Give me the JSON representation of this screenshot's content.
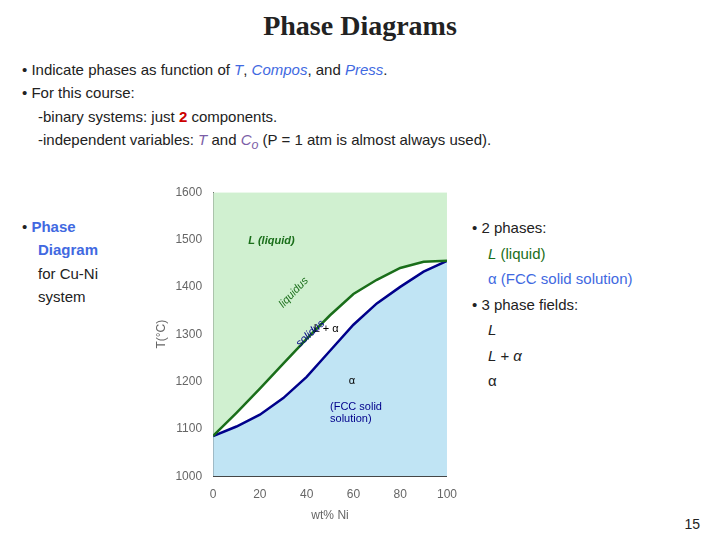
{
  "chart_data": {
    "type": "line",
    "title": "Phase Diagrams",
    "x_label": "wt% Ni",
    "y_label": "T(°C)",
    "x": [
      0,
      10,
      20,
      30,
      40,
      50,
      60,
      70,
      80,
      90,
      100
    ],
    "series": [
      {
        "name": "liquidus",
        "color": "#1a6e1a",
        "fill_color": "#d0f0d0",
        "values": [
          1085,
          1134,
          1185,
          1238,
          1290,
          1340,
          1385,
          1415,
          1440,
          1453,
          1455
        ]
      },
      {
        "name": "solidus",
        "color": "#00008B",
        "fill_color": "#c0e4f4",
        "values": [
          1085,
          1105,
          1130,
          1165,
          1210,
          1265,
          1320,
          1365,
          1400,
          1432,
          1455
        ]
      }
    ],
    "xlim": [
      0,
      100
    ],
    "ylim": [
      1000,
      1600
    ],
    "xticks": [
      0,
      20,
      40,
      60,
      80,
      100
    ],
    "yticks": [
      1000,
      1100,
      1200,
      1300,
      1400,
      1500,
      1600
    ],
    "grid": false,
    "annotations": [
      {
        "text": "L (liquid)",
        "x": 15,
        "y": 1490,
        "color": "#1a6e1a",
        "style": "bold italic"
      },
      {
        "text": "α",
        "x": 58,
        "y": 1195,
        "color": "#000000"
      },
      {
        "text": "(FCC solid",
        "x": 50,
        "y": 1140,
        "color": "#00008B"
      },
      {
        "text": "solution)",
        "x": 50,
        "y": 1115,
        "color": "#00008B"
      },
      {
        "text": "liquidus",
        "x": 30,
        "y": 1355,
        "color": "#1a6e1a",
        "style": "italic"
      },
      {
        "text": "L + α",
        "x": 43,
        "y": 1305,
        "color": "#000000"
      },
      {
        "text": "solidus",
        "x": 37,
        "y": 1272,
        "color": "#00008B",
        "style": "italic"
      }
    ]
  },
  "text_blocks": [
    [
      [
        {
          "text": "• "
        },
        {
          "text": "Indicate phases as function of "
        },
        {
          "text": "T",
          "color": "#4169E1",
          "style": "italic"
        },
        {
          "text": ", "
        },
        {
          "text": "Compos",
          "color": "#4169E1",
          "style": "italic"
        },
        {
          "text": ", and "
        },
        {
          "text": "Press",
          "color": "#4169E1",
          "style": "italic"
        },
        {
          "text": "."
        }
      ],
      [
        {
          "text": "• "
        },
        {
          "text": "For this course:"
        }
      ],
      [
        {
          "text": "-binary systems:  just "
        },
        {
          "text": "2",
          "color": "#cc0000",
          "style": "bold"
        },
        {
          "text": " components."
        }
      ],
      [
        {
          "text": "-independent variables:  "
        },
        {
          "text": "T",
          "color": "#7B5EA7",
          "style": "italic"
        },
        {
          "text": " and  "
        },
        {
          "text": "C",
          "color": "#7B5EA7",
          "style": "italic"
        },
        {
          "text": "o",
          "color": "#7B5EA7",
          "style": "italic sub"
        },
        {
          "text": " (P = 1 atm is almost always used)."
        }
      ]
    ],
    [
      [
        {
          "text": "• "
        },
        {
          "text": "Phase",
          "color": "#4169E1",
          "style": "bold"
        }
      ],
      [
        {
          "text": "Diagram",
          "color": "#4169E1",
          "style": "bold"
        }
      ],
      [
        {
          "text": "for Cu-Ni"
        }
      ],
      [
        {
          "text": "system"
        }
      ]
    ],
    [
      [
        {
          "text": "• 2 phases:"
        }
      ],
      [
        {
          "text": "L",
          "color": "#1a6e1a",
          "style": "italic"
        },
        {
          "text": " (liquid)",
          "color": "#1a6e1a"
        }
      ],
      [
        {
          "text": "α",
          "color": "#4169E1"
        },
        {
          "text": " (FCC solid solution)",
          "color": "#4169E1"
        }
      ],
      [
        {
          "text": "• 3 phase fields:"
        }
      ],
      [
        {
          "text": "L",
          "style": "italic"
        }
      ],
      [
        {
          "text": "L + α",
          "style": "italic"
        }
      ],
      [
        {
          "text": "α"
        }
      ]
    ]
  ],
  "page_number": "15"
}
